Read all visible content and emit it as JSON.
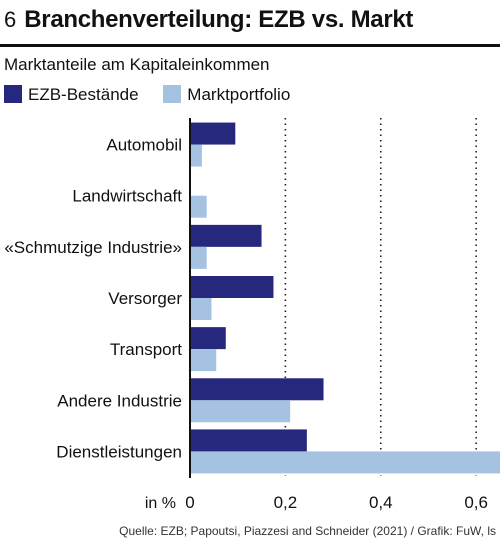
{
  "header": {
    "number": "6",
    "title": "Branchenverteilung: EZB vs. Markt"
  },
  "subtitle": "Marktanteile am Kapitaleinkommen",
  "source": "Quelle: EZB; Papoutsi, Piazzesi and Schneider (2021) / Grafik: FuW, ls",
  "colors": {
    "ezb": "#26287d",
    "markt": "#a6c2e1"
  },
  "chart_data": {
    "type": "bar",
    "orientation": "horizontal",
    "categories": [
      "Automobil",
      "Landwirtschaft",
      "«Schmutzige Industrie»",
      "Versorger",
      "Transport",
      "Andere Industrie",
      "Dienstleistungen"
    ],
    "series": [
      {
        "name": "EZB-Bestände",
        "values": [
          0.095,
          0.0,
          0.15,
          0.175,
          0.075,
          0.28,
          0.245
        ]
      },
      {
        "name": "Marktportfolio",
        "values": [
          0.025,
          0.035,
          0.035,
          0.045,
          0.055,
          0.21,
          0.65
        ]
      }
    ],
    "xlim": [
      0,
      0.65
    ],
    "xticks": [
      0,
      0.2,
      0.4,
      0.6
    ],
    "xtick_labels": [
      "0",
      "0,2",
      "0,4",
      "0,6"
    ],
    "xlabel": "in %",
    "grid": "vertical dotted",
    "legend": "top-left"
  }
}
